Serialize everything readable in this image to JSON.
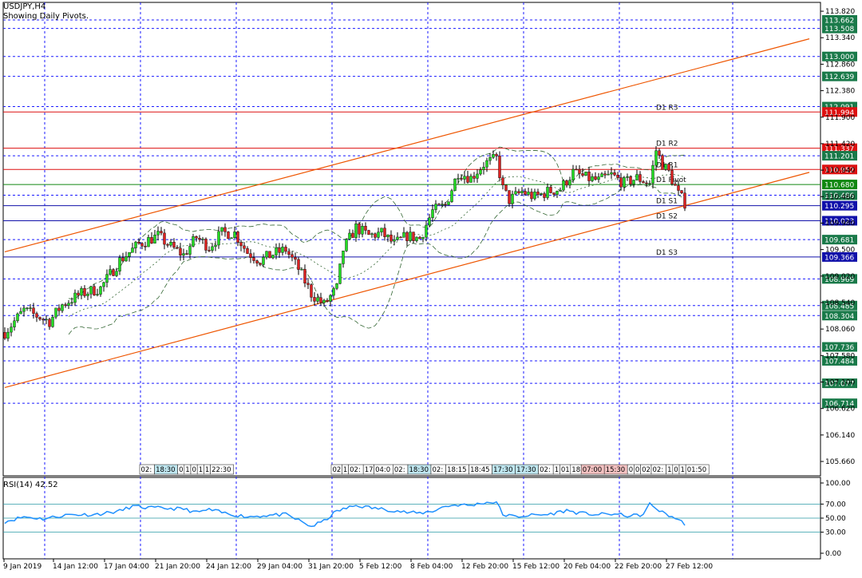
{
  "header": {
    "symbol_timeframe": "USDJPY,H4",
    "indicator_note": "Showing Daily Pivots."
  },
  "rsi_label": "RSI(14) 42.52",
  "colors": {
    "bull": "#22dd22",
    "bear": "#dd2222",
    "grid": "#1a1aff",
    "resistance": "#dd1111",
    "support": "#1111aa",
    "pivot": "#118811",
    "channel": "#ee5500",
    "rsi_line": "#1e90ff",
    "band": "#336633"
  },
  "chart_data": {
    "type": "candlestick",
    "title": "USDJPY,H4",
    "y_range": [
      105.4,
      113.98
    ],
    "price_ticks": [
      "113.820",
      "113.340",
      "112.860",
      "112.380",
      "111.900",
      "111.420",
      "110.940",
      "110.460",
      "109.980",
      "109.500",
      "109.020",
      "108.540",
      "108.060",
      "107.580",
      "107.100",
      "106.620",
      "106.140",
      "105.660"
    ],
    "time_labels": [
      "9 Jan 2019",
      "14 Jan 12:00",
      "17 Jan 04:00",
      "21 Jan 20:00",
      "24 Jan 12:00",
      "29 Jan 04:00",
      "31 Jan 20:00",
      "5 Feb 12:00",
      "8 Feb 04:00",
      "12 Feb 20:00",
      "15 Feb 12:00",
      "20 Feb 04:00",
      "22 Feb 20:00",
      "27 Feb 12:00"
    ],
    "level_labels": [
      {
        "value": 113.662,
        "text": "113.662",
        "style": "dotted"
      },
      {
        "value": 113.508,
        "text": "113.508",
        "style": "dotted"
      },
      {
        "value": 113.0,
        "text": "113.000",
        "style": "dotted"
      },
      {
        "value": 112.639,
        "text": "112.639",
        "style": "dotted"
      },
      {
        "value": 112.091,
        "text": "112.091",
        "style": "dotted"
      },
      {
        "value": 111.994,
        "text": "111.994",
        "style": "resistance"
      },
      {
        "value": 111.337,
        "text": "111.337",
        "style": "resistance"
      },
      {
        "value": 111.201,
        "text": "111.201",
        "style": "dotted"
      },
      {
        "value": 110.952,
        "text": "110.952",
        "style": "resistance"
      },
      {
        "value": 110.68,
        "text": "110.680",
        "style": "pivot"
      },
      {
        "value": 110.486,
        "text": "110.486",
        "style": "dotted"
      },
      {
        "value": 110.295,
        "text": "110.295",
        "style": "support"
      },
      {
        "value": 110.023,
        "text": "110.023",
        "style": "support"
      },
      {
        "value": 109.681,
        "text": "109.681",
        "style": "dotted"
      },
      {
        "value": 109.366,
        "text": "109.366",
        "style": "support"
      },
      {
        "value": 108.969,
        "text": "108.969",
        "style": "dotted"
      },
      {
        "value": 108.485,
        "text": "108.485",
        "style": "dotted"
      },
      {
        "value": 108.304,
        "text": "108.304",
        "style": "dotted"
      },
      {
        "value": 107.736,
        "text": "107.736",
        "style": "dotted"
      },
      {
        "value": 107.484,
        "text": "107.484",
        "style": "dotted"
      },
      {
        "value": 107.077,
        "text": "107.077",
        "style": "dotted"
      },
      {
        "value": 106.714,
        "text": "106.714",
        "style": "dotted"
      }
    ],
    "pivot_labels": [
      {
        "value": 111.994,
        "text": "D1 R3"
      },
      {
        "value": 111.337,
        "text": "D1 R2"
      },
      {
        "value": 110.952,
        "text": "D1 R1"
      },
      {
        "value": 110.68,
        "text": "D1 Pivot"
      },
      {
        "value": 110.295,
        "text": "D1 S1"
      },
      {
        "value": 110.023,
        "text": "D1 S2"
      },
      {
        "value": 109.366,
        "text": "D1 S3"
      }
    ],
    "channel": {
      "upper": [
        {
          "bar": 0,
          "price": 109.46
        },
        {
          "bar": 252,
          "price": 113.32
        }
      ],
      "lower": [
        {
          "bar": 0,
          "price": 107.0
        },
        {
          "bar": 252,
          "price": 110.9
        }
      ]
    },
    "price_path": [
      [
        0,
        108.0
      ],
      [
        6,
        108.4
      ],
      [
        10,
        108.3
      ],
      [
        14,
        108.2
      ],
      [
        18,
        108.5
      ],
      [
        24,
        108.7
      ],
      [
        30,
        108.8
      ],
      [
        36,
        109.3
      ],
      [
        42,
        109.6
      ],
      [
        48,
        109.75
      ],
      [
        52,
        109.55
      ],
      [
        56,
        109.4
      ],
      [
        60,
        109.72
      ],
      [
        64,
        109.55
      ],
      [
        68,
        109.8
      ],
      [
        72,
        109.8
      ],
      [
        76,
        109.45
      ],
      [
        80,
        109.3
      ],
      [
        84,
        109.42
      ],
      [
        88,
        109.5
      ],
      [
        92,
        109.15
      ],
      [
        96,
        108.7
      ],
      [
        100,
        108.5
      ],
      [
        104,
        108.8
      ],
      [
        106,
        109.5
      ],
      [
        110,
        109.9
      ],
      [
        114,
        109.75
      ],
      [
        118,
        109.8
      ],
      [
        122,
        109.6
      ],
      [
        126,
        109.75
      ],
      [
        130,
        109.7
      ],
      [
        134,
        110.2
      ],
      [
        138,
        110.3
      ],
      [
        142,
        110.9
      ],
      [
        146,
        110.8
      ],
      [
        150,
        111.05
      ],
      [
        154,
        111.15
      ],
      [
        156,
        110.6
      ],
      [
        158,
        110.4
      ],
      [
        162,
        110.55
      ],
      [
        166,
        110.45
      ],
      [
        170,
        110.55
      ],
      [
        174,
        110.6
      ],
      [
        178,
        110.9
      ],
      [
        182,
        110.8
      ],
      [
        186,
        110.75
      ],
      [
        190,
        110.85
      ],
      [
        194,
        110.7
      ],
      [
        198,
        110.8
      ],
      [
        202,
        110.7
      ],
      [
        204,
        111.3
      ],
      [
        206,
        111.05
      ],
      [
        208,
        110.9
      ],
      [
        211,
        110.5
      ],
      [
        213,
        110.35
      ]
    ],
    "rsi_ticks": [
      "100.00",
      "70.00",
      "50.00",
      "30.00",
      "0.00"
    ],
    "rsi_value": 42.52,
    "rsi_path": [
      [
        0,
        45
      ],
      [
        6,
        52
      ],
      [
        12,
        49
      ],
      [
        20,
        55
      ],
      [
        28,
        55
      ],
      [
        36,
        60
      ],
      [
        40,
        67
      ],
      [
        44,
        65
      ],
      [
        50,
        64
      ],
      [
        56,
        63
      ],
      [
        60,
        58
      ],
      [
        64,
        62
      ],
      [
        70,
        56
      ],
      [
        76,
        52
      ],
      [
        82,
        54
      ],
      [
        88,
        55
      ],
      [
        92,
        47
      ],
      [
        96,
        38
      ],
      [
        100,
        46
      ],
      [
        104,
        60
      ],
      [
        110,
        68
      ],
      [
        116,
        64
      ],
      [
        122,
        61
      ],
      [
        126,
        58
      ],
      [
        130,
        57
      ],
      [
        134,
        60
      ],
      [
        138,
        67
      ],
      [
        142,
        69
      ],
      [
        146,
        68
      ],
      [
        150,
        72
      ],
      [
        154,
        73
      ],
      [
        156,
        55
      ],
      [
        160,
        52
      ],
      [
        164,
        54
      ],
      [
        170,
        55
      ],
      [
        176,
        61
      ],
      [
        180,
        57
      ],
      [
        186,
        55
      ],
      [
        190,
        56
      ],
      [
        196,
        53
      ],
      [
        200,
        55
      ],
      [
        202,
        70
      ],
      [
        206,
        58
      ],
      [
        210,
        50
      ],
      [
        213,
        42
      ]
    ]
  },
  "session_tags": {
    "left": [
      "02:",
      "18:30",
      "0",
      "1",
      "0",
      "1",
      "1",
      "22:30"
    ],
    "mid": [
      "02",
      "1",
      "02:",
      "17",
      "04:0",
      "02:",
      "18:30",
      "02:",
      "18:15",
      "18:45",
      "17:30",
      "17:30",
      "02:",
      "1",
      "01",
      "18",
      "07:00",
      "15:30",
      "0",
      "0",
      "02",
      "02:",
      "1",
      "0",
      "1",
      "01:50"
    ]
  }
}
